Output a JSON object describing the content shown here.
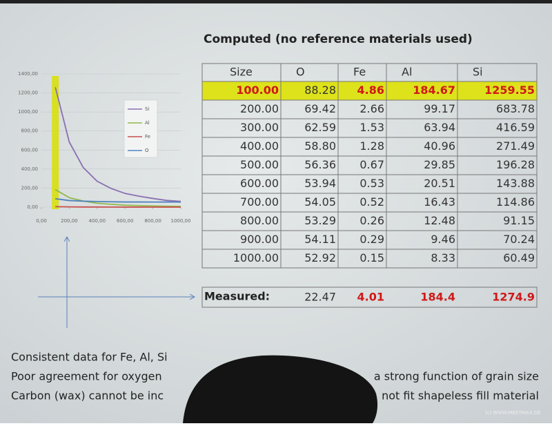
{
  "title": "Computed (no reference materials used)",
  "chart_data": {
    "type": "line",
    "x": [
      100,
      200,
      300,
      400,
      500,
      600,
      700,
      800,
      900,
      1000
    ],
    "xlim": [
      0,
      1000
    ],
    "xticks": [
      {
        "value": 0,
        "label": "0,00"
      },
      {
        "value": 200,
        "label": "200,00"
      },
      {
        "value": 400,
        "label": "400,00"
      },
      {
        "value": 600,
        "label": "600,00"
      },
      {
        "value": 800,
        "label": "800,00"
      },
      {
        "value": 1000,
        "label": "1000,00"
      }
    ],
    "ylim": [
      0,
      1400
    ],
    "yticks": [
      {
        "value": 0,
        "label": "0,00"
      },
      {
        "value": 200,
        "label": "200,00"
      },
      {
        "value": 400,
        "label": "400,00"
      },
      {
        "value": 600,
        "label": "600,00"
      },
      {
        "value": 800,
        "label": "800,00"
      },
      {
        "value": 1000,
        "label": "1000,00"
      },
      {
        "value": 1200,
        "label": "1200,00"
      },
      {
        "value": 1400,
        "label": "1400,00"
      }
    ],
    "grid": true,
    "series": [
      {
        "name": "Si",
        "color": "#8a6fb0",
        "values": [
          1259.55,
          683.78,
          416.59,
          271.49,
          196.28,
          143.88,
          114.86,
          91.15,
          70.24,
          60.49
        ]
      },
      {
        "name": "Al",
        "color": "#8fb84a",
        "values": [
          184.67,
          99.17,
          63.94,
          40.96,
          29.85,
          20.51,
          16.43,
          12.48,
          9.46,
          8.33
        ]
      },
      {
        "name": "Fe",
        "color": "#c8504d",
        "values": [
          4.86,
          2.66,
          1.53,
          1.28,
          0.67,
          0.53,
          0.52,
          0.26,
          0.29,
          0.15
        ]
      },
      {
        "name": "O",
        "color": "#4f81bd",
        "values": [
          88.28,
          69.42,
          62.59,
          58.8,
          56.36,
          53.94,
          54.05,
          53.29,
          54.11,
          52.92
        ]
      }
    ]
  },
  "table": {
    "header": [
      "Size",
      "O",
      "Fe",
      "Al",
      "Si"
    ],
    "rows": [
      [
        "100.00",
        "88.28",
        "4.86",
        "184.67",
        "1259.55"
      ],
      [
        "200.00",
        "69.42",
        "2.66",
        "99.17",
        "683.78"
      ],
      [
        "300.00",
        "62.59",
        "1.53",
        "63.94",
        "416.59"
      ],
      [
        "400.00",
        "58.80",
        "1.28",
        "40.96",
        "271.49"
      ],
      [
        "500.00",
        "56.36",
        "0.67",
        "29.85",
        "196.28"
      ],
      [
        "600.00",
        "53.94",
        "0.53",
        "20.51",
        "143.88"
      ],
      [
        "700.00",
        "54.05",
        "0.52",
        "16.43",
        "114.86"
      ],
      [
        "800.00",
        "53.29",
        "0.26",
        "12.48",
        "91.15"
      ],
      [
        "900.00",
        "54.11",
        "0.29",
        "9.46",
        "70.24"
      ],
      [
        "1000.00",
        "52.92",
        "0.15",
        "8.33",
        "60.49"
      ]
    ]
  },
  "measured": {
    "label": "Measured:",
    "values": [
      "22.47",
      "4.01",
      "184.4",
      "1274.9"
    ]
  },
  "notes": [
    [
      "Consistent data for Fe, Al, Si"
    ],
    [
      "Poor agreement for oxygen",
      "a strong function of grain size"
    ],
    [
      "Carbon (wax) cannot be inc",
      "not fit shapeless fill material"
    ]
  ],
  "watermark": "(c) WWW.MEETMAX.DE"
}
